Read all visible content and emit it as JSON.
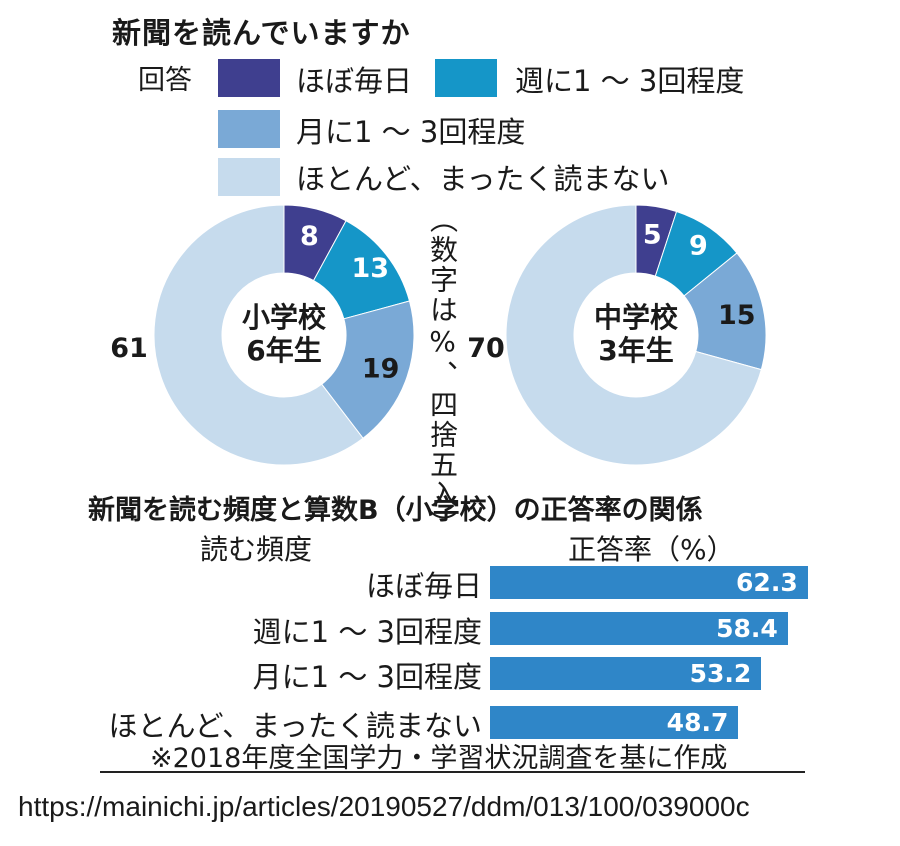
{
  "title": "新聞を読んでいますか",
  "legend": {
    "heading": "回答",
    "items": [
      {
        "label": "ほぼ毎日",
        "color": "#3f3f8f"
      },
      {
        "label": "週に1 ～ 3回程度",
        "color": "#1596c8"
      },
      {
        "label": "月に1 ～ 3回程度",
        "color": "#7aa9d6"
      },
      {
        "label": "ほとんど、まったく読まない",
        "color": "#c6dbed"
      }
    ]
  },
  "note_vertical": "（数字は%、四捨五入）",
  "chart_data": [
    {
      "type": "pie",
      "center_label": [
        "小学校",
        "6年生"
      ],
      "categories": [
        "ほぼ毎日",
        "週に1 ～ 3回程度",
        "月に1 ～ 3回程度",
        "ほとんど、まったく読まない"
      ],
      "values": [
        8,
        13,
        19,
        61
      ],
      "unit": "%"
    },
    {
      "type": "pie",
      "center_label": [
        "中学校",
        "3年生"
      ],
      "categories": [
        "ほぼ毎日",
        "週に1 ～ 3回程度",
        "月に1 ～ 3回程度",
        "ほとんど、まったく読まない"
      ],
      "values": [
        5,
        9,
        15,
        70
      ],
      "unit": "%"
    },
    {
      "type": "bar",
      "title": "新聞を読む頻度と算数B（小学校）の正答率の関係",
      "xlabel": "読む頻度",
      "ylabel": "正答率（%）",
      "categories": [
        "ほぼ毎日",
        "週に1 ～ 3回程度",
        "月に1 ～ 3回程度",
        "ほとんど、まったく読まない"
      ],
      "values": [
        62.3,
        58.4,
        53.2,
        48.7
      ],
      "ylim": [
        0,
        70
      ],
      "color": "#2f86c8"
    }
  ],
  "footnote": "※2018年度全国学力・学習状況調査を基に作成",
  "source_url": "https://mainichi.jp/articles/20190527/ddm/013/100/039000c"
}
